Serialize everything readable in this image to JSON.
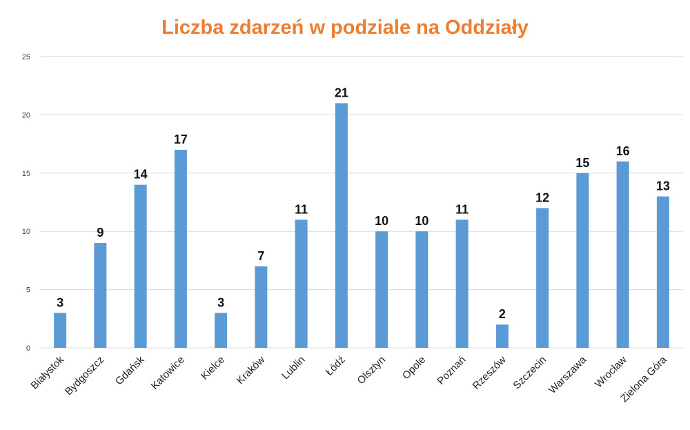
{
  "chart_data": {
    "type": "bar",
    "title": "Liczba zdarzeń w podziale na Oddziały",
    "xlabel": "",
    "ylabel": "",
    "categories": [
      "Białystok",
      "Bydgoszcz",
      "Gdańsk",
      "Katowice",
      "Kielce",
      "Kraków",
      "Lublin",
      "Łódź",
      "Olsztyn",
      "Opole",
      "Poznań",
      "Rzeszów",
      "Szczecin",
      "Warszawa",
      "Wrocław",
      "Zielona Góra"
    ],
    "values": [
      3,
      9,
      14,
      17,
      3,
      7,
      11,
      21,
      10,
      10,
      11,
      2,
      12,
      15,
      16,
      13
    ],
    "ylim": [
      0,
      25
    ],
    "yticks": [
      0,
      5,
      10,
      15,
      20,
      25
    ],
    "grid": true,
    "legend": "none",
    "data_labels": true,
    "bar_color": "#5b9bd5",
    "title_color": "#ed7d31"
  }
}
